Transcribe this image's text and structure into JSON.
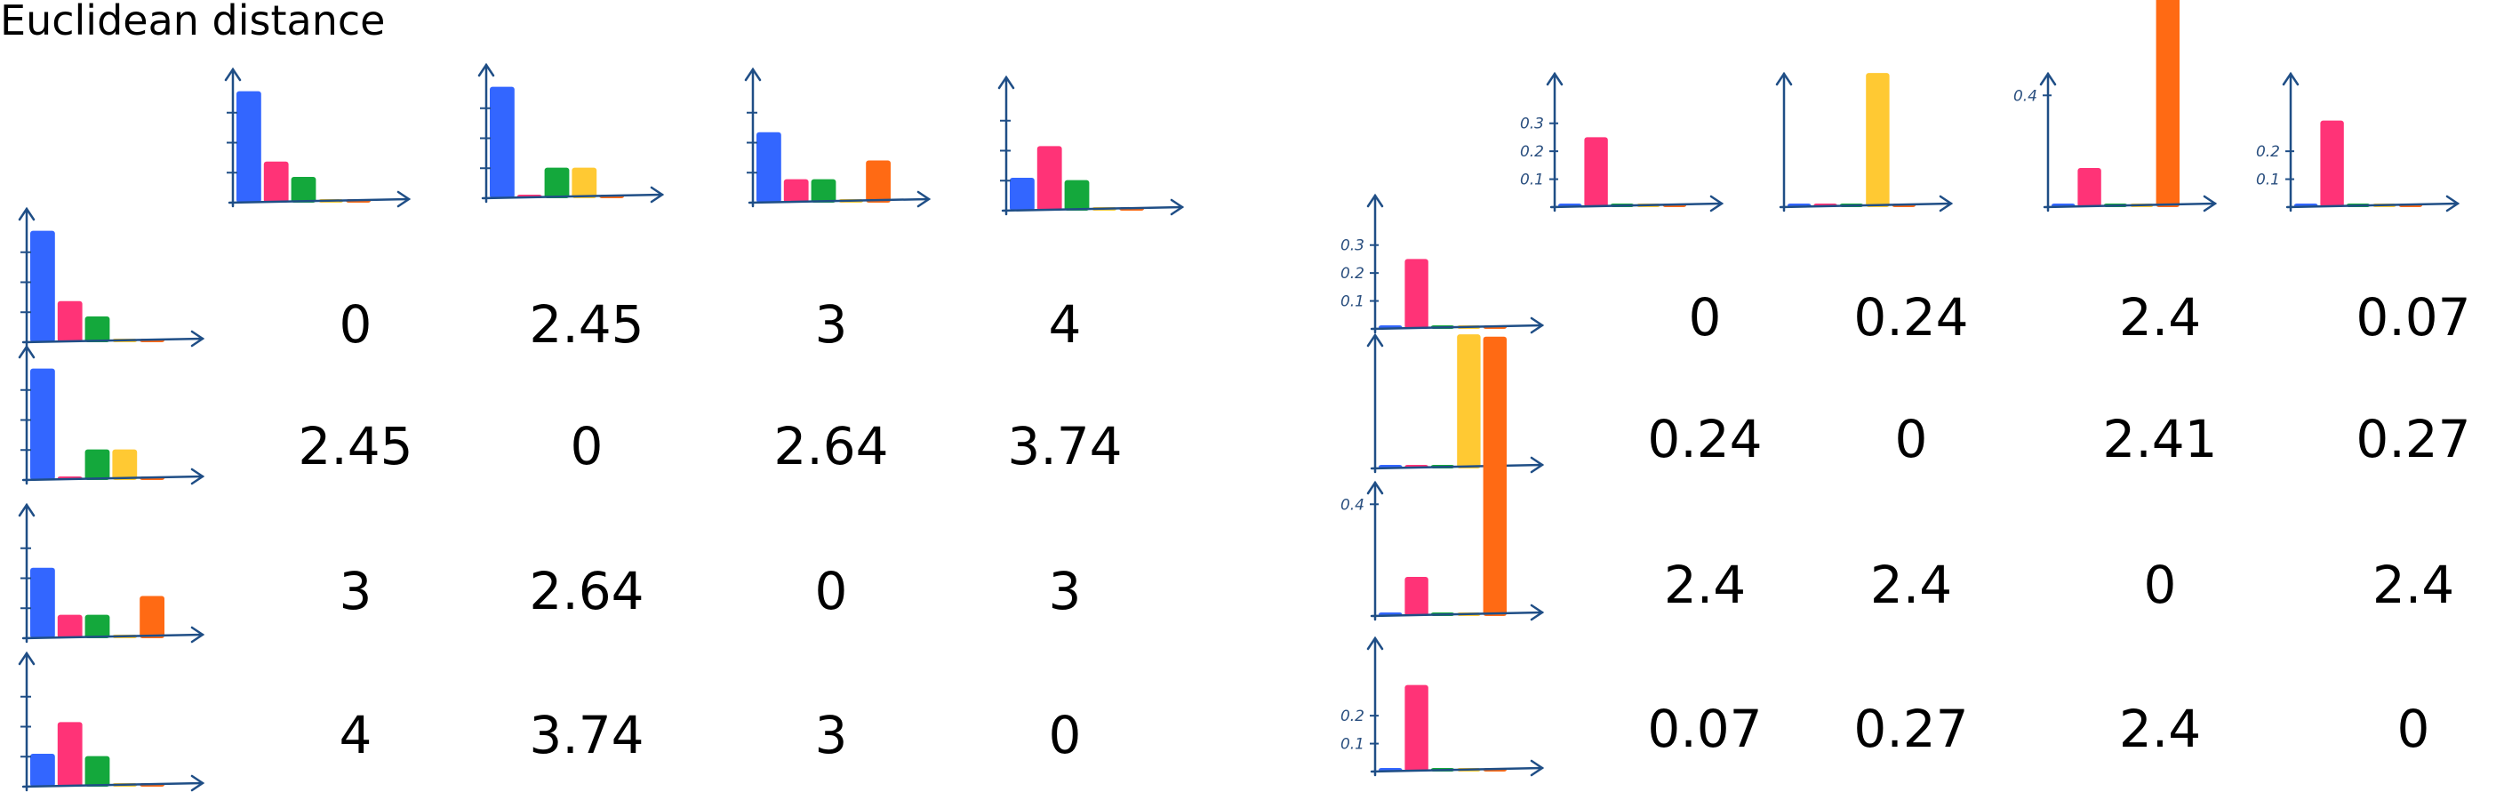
{
  "title": "Euclidean distance",
  "colors": {
    "axis": "#1f4e86",
    "bins": [
      "#3366ff",
      "#ff3377",
      "#14a83c",
      "#ffc933",
      "#ff6a14"
    ]
  },
  "panels": [
    {
      "name": "left",
      "scale_labels": [],
      "histograms": [
        [
          0.95,
          0.35,
          0.22,
          0.02,
          0.02
        ],
        [
          0.95,
          0.02,
          0.26,
          0.26,
          0.02
        ],
        [
          0.6,
          0.2,
          0.2,
          0.02,
          0.36
        ],
        [
          0.28,
          0.55,
          0.26,
          0.02,
          0.02
        ]
      ],
      "matrix": [
        [
          "0",
          "2.45",
          "3",
          "4"
        ],
        [
          "2.45",
          "0",
          "2.64",
          "3.74"
        ],
        [
          "3",
          "2.64",
          "0",
          "3"
        ],
        [
          "4",
          "3.74",
          "3",
          "0"
        ]
      ]
    },
    {
      "name": "right",
      "scale_labels": [
        [
          "0.3",
          "0.2",
          "0.1"
        ],
        [],
        [
          "0.4"
        ],
        [
          "0.2",
          "0.1"
        ]
      ],
      "histograms": [
        [
          0.02,
          0.25,
          0.03,
          0.02,
          0.02
        ],
        [
          0.02,
          0.02,
          0.03,
          0.48,
          0.02
        ],
        [
          0.02,
          0.14,
          0.03,
          0.02,
          1.0
        ],
        [
          0.02,
          0.31,
          0.03,
          0.02,
          0.02
        ]
      ],
      "matrix": [
        [
          "0",
          "0.24",
          "2.4",
          "0.07"
        ],
        [
          "0.24",
          "0",
          "2.41",
          "0.27"
        ],
        [
          "2.4",
          "2.4",
          "0",
          "2.4"
        ],
        [
          "0.07",
          "0.27",
          "2.4",
          "0"
        ]
      ]
    }
  ]
}
